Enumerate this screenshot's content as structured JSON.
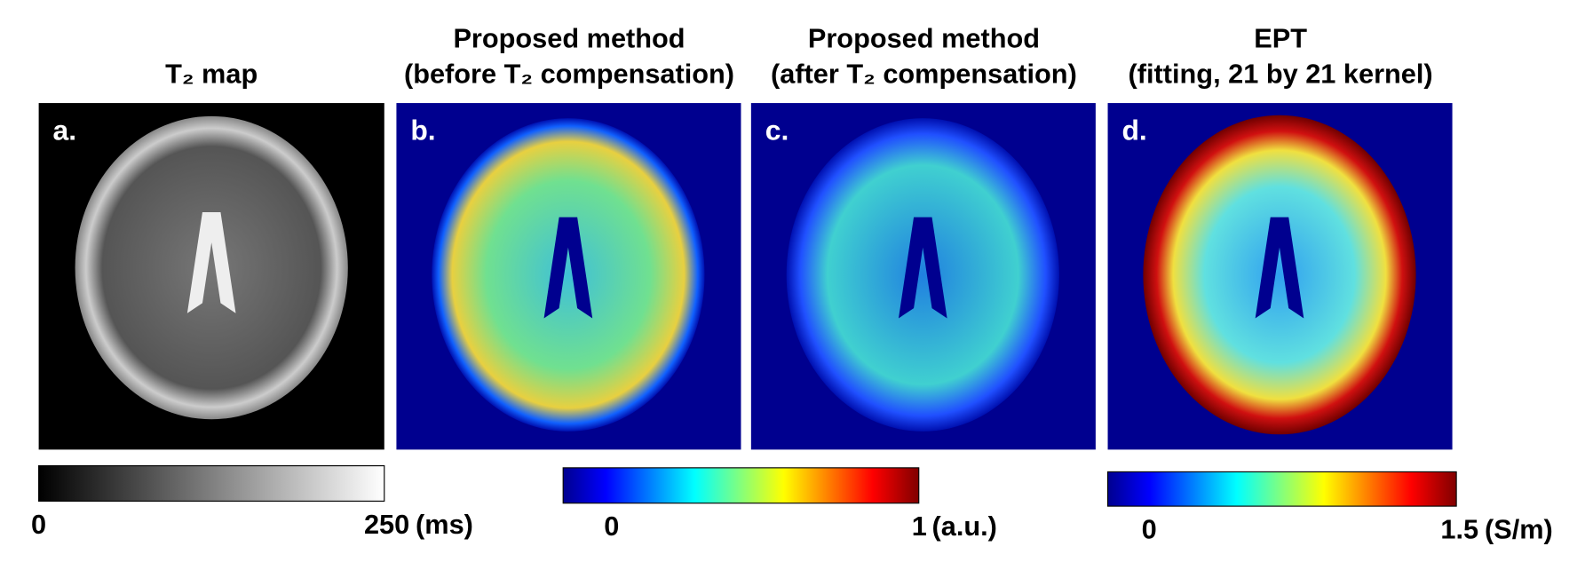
{
  "panels": [
    {
      "letter": "a.",
      "title": [
        "T₂ map"
      ]
    },
    {
      "letter": "b.",
      "title": [
        "Proposed method",
        "(before T₂ compensation)"
      ]
    },
    {
      "letter": "c.",
      "title": [
        "Proposed method",
        "(after T₂ compensation)"
      ]
    },
    {
      "letter": "d.",
      "title": [
        "EPT",
        "(fitting, 21 by 21 kernel)"
      ]
    }
  ],
  "colorbars": [
    {
      "min": "0",
      "max": "250",
      "unit": "(ms)"
    },
    {
      "min": "0",
      "max": "1",
      "unit": "(a.u.)"
    },
    {
      "min": "0",
      "max": "1.5",
      "unit": "(S/m)"
    }
  ]
}
